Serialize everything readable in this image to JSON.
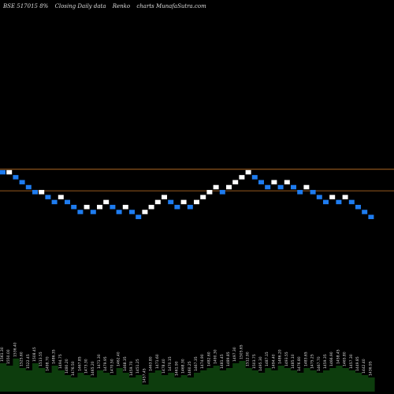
{
  "header": {
    "symbol": "BSE 517015 8%",
    "desc": "Closing Daily data",
    "chart_name": "Renko",
    "site": "charts MunafaSutra.com"
  },
  "colors": {
    "background": "#000000",
    "up_brick": "#ffffff",
    "down_brick": "#1e7cf0",
    "reference_line": "#c87828",
    "volume_area": "#0d3d0d"
  },
  "chart_data": {
    "type": "renko",
    "title": "BSE 517015 8%",
    "subtitle": "Closing Daily data Renko charts MunafaSutra.com",
    "reference_lines": [
      1502,
      1476
    ],
    "bricks": [
      {
        "d": "down",
        "y": 1498
      },
      {
        "d": "up",
        "y": 1498
      },
      {
        "d": "down",
        "y": 1492
      },
      {
        "d": "down",
        "y": 1486
      },
      {
        "d": "down",
        "y": 1480
      },
      {
        "d": "down",
        "y": 1474
      },
      {
        "d": "up",
        "y": 1474
      },
      {
        "d": "down",
        "y": 1468
      },
      {
        "d": "down",
        "y": 1462
      },
      {
        "d": "up",
        "y": 1468
      },
      {
        "d": "down",
        "y": 1462
      },
      {
        "d": "down",
        "y": 1456
      },
      {
        "d": "down",
        "y": 1450
      },
      {
        "d": "up",
        "y": 1456
      },
      {
        "d": "down",
        "y": 1450
      },
      {
        "d": "up",
        "y": 1456
      },
      {
        "d": "up",
        "y": 1462
      },
      {
        "d": "down",
        "y": 1456
      },
      {
        "d": "down",
        "y": 1450
      },
      {
        "d": "up",
        "y": 1456
      },
      {
        "d": "down",
        "y": 1450
      },
      {
        "d": "down",
        "y": 1444
      },
      {
        "d": "up",
        "y": 1450
      },
      {
        "d": "up",
        "y": 1456
      },
      {
        "d": "up",
        "y": 1462
      },
      {
        "d": "up",
        "y": 1468
      },
      {
        "d": "down",
        "y": 1462
      },
      {
        "d": "down",
        "y": 1456
      },
      {
        "d": "up",
        "y": 1462
      },
      {
        "d": "down",
        "y": 1456
      },
      {
        "d": "up",
        "y": 1462
      },
      {
        "d": "up",
        "y": 1468
      },
      {
        "d": "up",
        "y": 1474
      },
      {
        "d": "up",
        "y": 1480
      },
      {
        "d": "down",
        "y": 1474
      },
      {
        "d": "up",
        "y": 1480
      },
      {
        "d": "up",
        "y": 1486
      },
      {
        "d": "up",
        "y": 1492
      },
      {
        "d": "up",
        "y": 1498
      },
      {
        "d": "down",
        "y": 1492
      },
      {
        "d": "down",
        "y": 1486
      },
      {
        "d": "down",
        "y": 1480
      },
      {
        "d": "up",
        "y": 1486
      },
      {
        "d": "down",
        "y": 1480
      },
      {
        "d": "up",
        "y": 1486
      },
      {
        "d": "down",
        "y": 1480
      },
      {
        "d": "down",
        "y": 1474
      },
      {
        "d": "up",
        "y": 1480
      },
      {
        "d": "down",
        "y": 1474
      },
      {
        "d": "down",
        "y": 1468
      },
      {
        "d": "down",
        "y": 1462
      },
      {
        "d": "up",
        "y": 1468
      },
      {
        "d": "down",
        "y": 1462
      },
      {
        "d": "up",
        "y": 1468
      },
      {
        "d": "down",
        "y": 1462
      },
      {
        "d": "down",
        "y": 1456
      },
      {
        "d": "down",
        "y": 1450
      },
      {
        "d": "down",
        "y": 1444
      }
    ],
    "brick_labels": [
      "1561.30",
      "1550.00",
      "1536.40",
      "1525.60",
      "1522.45",
      "1508.45",
      "1513.55",
      "1498.70",
      "1486.35",
      "1494.75",
      "1480.20",
      "1476.50",
      "1467.85",
      "1473.30",
      "1465.20",
      "1471.30",
      "1479.95",
      "1470.50",
      "1462.40",
      "1468.35",
      "1459.70",
      "1451.25",
      "1457.45",
      "1463.80",
      "1471.60",
      "1478.40",
      "1470.15",
      "1461.90",
      "1468.30",
      "1460.25",
      "1467.35",
      "1474.90",
      "1482.60",
      "1490.30",
      "1481.45",
      "1489.85",
      "1497.30",
      "1505.65",
      "1512.90",
      "1503.75",
      "1495.30",
      "1487.15",
      "1494.40",
      "1486.20",
      "1493.55",
      "1485.10",
      "1476.80",
      "1483.65",
      "1475.25",
      "1467.70",
      "1459.35",
      "1466.90",
      "1458.45",
      "1465.80",
      "1457.30",
      "1449.85",
      "1442.40",
      "1436.95"
    ],
    "volume": [
      0.6,
      0.55,
      0.7,
      0.5,
      0.45,
      0.6,
      0.5,
      0.4,
      0.55,
      0.45,
      0.35,
      0.3,
      0.4,
      0.35,
      0.3,
      0.45,
      0.4,
      0.35,
      0.5,
      0.4,
      0.3,
      0.35,
      0.15,
      0.4,
      0.45,
      0.35,
      0.4,
      0.3,
      0.35,
      0.3,
      0.4,
      0.45,
      0.5,
      0.55,
      0.45,
      0.5,
      0.6,
      0.65,
      0.5,
      0.45,
      0.4,
      0.5,
      0.45,
      0.55,
      0.5,
      0.45,
      0.4,
      0.5,
      0.45,
      0.4,
      0.45,
      0.5,
      0.55,
      0.5,
      0.45,
      0.4,
      0.35,
      0.3
    ]
  }
}
